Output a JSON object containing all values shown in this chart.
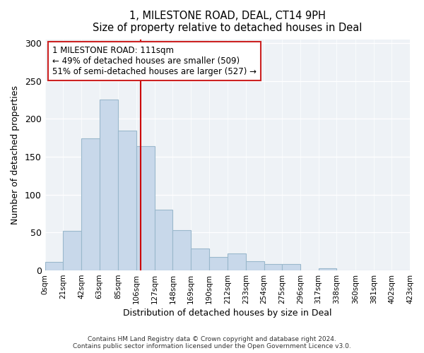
{
  "title": "1, MILESTONE ROAD, DEAL, CT14 9PH",
  "subtitle": "Size of property relative to detached houses in Deal",
  "xlabel": "Distribution of detached houses by size in Deal",
  "ylabel": "Number of detached properties",
  "bar_color": "#c8d8ea",
  "bar_edge_color": "#9ab8cc",
  "vline_x": 111,
  "vline_color": "#cc0000",
  "annotation_title": "1 MILESTONE ROAD: 111sqm",
  "annotation_line1": "← 49% of detached houses are smaller (509)",
  "annotation_line2": "51% of semi-detached houses are larger (527) →",
  "footer1": "Contains HM Land Registry data © Crown copyright and database right 2024.",
  "footer2": "Contains public sector information licensed under the Open Government Licence v3.0.",
  "bin_edges": [
    0,
    21,
    42,
    63,
    85,
    106,
    127,
    148,
    169,
    190,
    212,
    233,
    254,
    275,
    296,
    317,
    338,
    360,
    381,
    402,
    423
  ],
  "bin_counts": [
    11,
    52,
    174,
    225,
    184,
    164,
    80,
    53,
    29,
    18,
    22,
    12,
    8,
    8,
    0,
    3,
    0,
    0,
    0,
    0
  ],
  "ylim": [
    0,
    305
  ],
  "xlim": [
    0,
    423
  ],
  "yticks": [
    0,
    50,
    100,
    150,
    200,
    250,
    300
  ],
  "tick_labels": [
    "0sqm",
    "21sqm",
    "42sqm",
    "63sqm",
    "85sqm",
    "106sqm",
    "127sqm",
    "148sqm",
    "169sqm",
    "190sqm",
    "212sqm",
    "233sqm",
    "254sqm",
    "275sqm",
    "296sqm",
    "317sqm",
    "338sqm",
    "360sqm",
    "381sqm",
    "402sqm",
    "423sqm"
  ],
  "background_color": "#eef2f6"
}
